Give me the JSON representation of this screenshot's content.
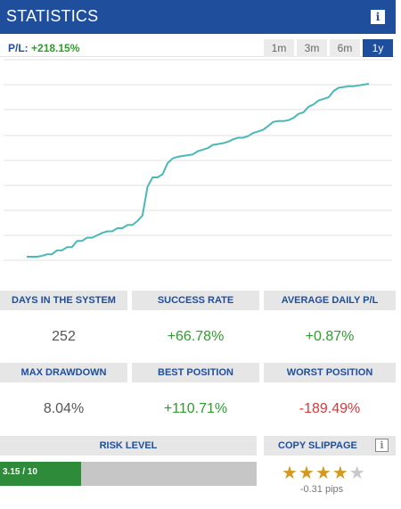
{
  "header": {
    "title": "STATISTICS",
    "info_icon": "i"
  },
  "pl": {
    "label": "P/L:",
    "value": "+218.15%"
  },
  "periods": [
    {
      "label": "1m",
      "active": false
    },
    {
      "label": "3m",
      "active": false
    },
    {
      "label": "6m",
      "active": false
    },
    {
      "label": "1y",
      "active": true
    }
  ],
  "chart_data": {
    "type": "line",
    "line_color": "#4bb8b8",
    "grid": true,
    "series": [
      {
        "values": [
          0,
          0,
          0,
          1,
          3,
          3,
          8,
          8,
          12,
          12,
          20,
          20,
          24,
          24,
          27,
          30,
          32,
          32,
          36,
          36,
          40,
          40,
          45,
          52,
          88,
          100,
          100,
          104,
          118,
          124,
          126,
          127,
          128,
          129,
          133,
          135,
          137,
          141,
          142,
          143,
          145,
          148,
          150,
          150,
          152,
          156,
          158,
          160,
          165,
          170,
          171,
          171,
          172,
          175,
          180,
          182,
          189,
          192,
          197,
          199,
          201,
          209,
          213,
          214,
          215,
          215,
          216,
          217,
          218
        ]
      }
    ]
  },
  "stats": {
    "days_label": "DAYS IN THE SYSTEM",
    "days_value": "252",
    "success_label": "SUCCESS RATE",
    "success_value": "+66.78%",
    "avg_label": "AVERAGE DAILY P/L",
    "avg_value": "+0.87%",
    "maxdd_label": "MAX DRAWDOWN",
    "maxdd_value": "8.04%",
    "best_label": "BEST POSITION",
    "best_value": "+110.71%",
    "worst_label": "WORST POSITION",
    "worst_value": "-189.49%"
  },
  "risk": {
    "label": "RISK LEVEL",
    "text": "3.15 / 10",
    "value": 3.15,
    "max": 10
  },
  "copy_slippage": {
    "label": "COPY SLIPPAGE",
    "info_icon": "i",
    "rating": 4,
    "max_rating": 5,
    "value": "-0.31 pips"
  },
  "colors": {
    "brand": "#1f4e9c",
    "positive": "#2d9d2d",
    "negative": "#d23a3a",
    "risk_fill": "#2e8b3a"
  }
}
